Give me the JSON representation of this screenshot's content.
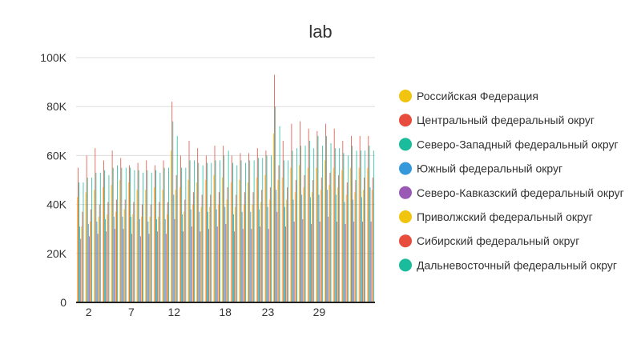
{
  "chart_data": {
    "type": "bar",
    "title": "lab",
    "xlabel": "",
    "ylabel": "",
    "ylim": [
      0,
      100000
    ],
    "y_ticks": [
      "0",
      "20K",
      "40K",
      "60K",
      "80K",
      "100K"
    ],
    "y_tick_values": [
      0,
      20000,
      40000,
      60000,
      80000,
      100000
    ],
    "categories": [
      1,
      2,
      3,
      4,
      5,
      6,
      7,
      8,
      9,
      10,
      11,
      12,
      13,
      14,
      15,
      16,
      17,
      18,
      19,
      20,
      21,
      22,
      23,
      24,
      25,
      26,
      27,
      28,
      29,
      30,
      31,
      32,
      33,
      34,
      35
    ],
    "x_tick_labels": [
      {
        "category": 2,
        "label": "2"
      },
      {
        "category": 7,
        "label": "7"
      },
      {
        "category": 12,
        "label": "12"
      },
      {
        "category": 18,
        "label": "18"
      },
      {
        "category": 23,
        "label": "23"
      },
      {
        "category": 29,
        "label": "29"
      }
    ],
    "grid": true,
    "legend_position": "right",
    "series": [
      {
        "name": "Российская Федерация",
        "color": "#f1c40f",
        "values": [
          43000,
          45000,
          46000,
          47000,
          48000,
          50000,
          49000,
          46000,
          46000,
          47000,
          46000,
          62000,
          47000,
          50000,
          49000,
          50000,
          52000,
          51000,
          49000,
          50000,
          49000,
          51000,
          52000,
          69000,
          51000,
          55000,
          56000,
          55000,
          55000,
          58000,
          55000,
          54000,
          55000,
          55000,
          55000
        ]
      },
      {
        "name": "Центральный федеральный округ",
        "color": "#e74c3c",
        "values": [
          55000,
          60000,
          63000,
          58000,
          62000,
          59000,
          56000,
          57000,
          58000,
          56000,
          58000,
          82000,
          60000,
          66000,
          63000,
          60000,
          64000,
          64000,
          60000,
          61000,
          61000,
          63000,
          62000,
          93000,
          66000,
          73000,
          74000,
          71000,
          70000,
          73000,
          71000,
          66000,
          68000,
          68000,
          68000
        ]
      },
      {
        "name": "Северо-Западный федеральный округ",
        "color": "#1abc9c",
        "values": [
          49000,
          51000,
          53000,
          54000,
          55000,
          55000,
          55000,
          54000,
          54000,
          54000,
          55000,
          74000,
          55000,
          58000,
          57000,
          57000,
          58000,
          60000,
          57000,
          58000,
          58000,
          59000,
          60000,
          80000,
          58000,
          62000,
          64000,
          66000,
          68000,
          68000,
          63000,
          61000,
          64000,
          62000,
          64000
        ]
      },
      {
        "name": "Южный федеральный округ",
        "color": "#3498db",
        "values": [
          31000,
          32000,
          33000,
          34000,
          35000,
          35000,
          35000,
          34000,
          33000,
          34000,
          34000,
          44000,
          36000,
          38000,
          37000,
          37000,
          38000,
          39000,
          36000,
          37000,
          37000,
          38000,
          39000,
          46000,
          39000,
          42000,
          44000,
          43000,
          44000,
          46000,
          44000,
          41000,
          42000,
          43000,
          47000
        ]
      },
      {
        "name": "Северо-Кавказский федеральный округ",
        "color": "#9b59b6",
        "values": [
          26000,
          27000,
          28000,
          29000,
          30000,
          30000,
          28000,
          27000,
          28000,
          29000,
          28000,
          34000,
          29000,
          31000,
          29000,
          30000,
          31000,
          32000,
          29000,
          30000,
          30000,
          31000,
          30000,
          37000,
          31000,
          33000,
          34000,
          32000,
          33000,
          35000,
          33000,
          32000,
          33000,
          33000,
          33000
        ]
      },
      {
        "name": "Приволжский федеральный округ",
        "color": "#f1c40f",
        "values": [
          31000,
          33000,
          35000,
          36000,
          37000,
          38000,
          36000,
          35000,
          35000,
          35000,
          36000,
          46000,
          37000,
          40000,
          39000,
          39000,
          40000,
          42000,
          39000,
          40000,
          40000,
          41000,
          42000,
          50000,
          42000,
          45000,
          47000,
          45000,
          46000,
          48000,
          47000,
          44000,
          45000,
          46000,
          46000
        ]
      },
      {
        "name": "Сибирский федеральный округ",
        "color": "#e74c3c",
        "values": [
          37000,
          38000,
          40000,
          41000,
          42000,
          42000,
          41000,
          40000,
          40000,
          41000,
          41000,
          52000,
          42000,
          45000,
          44000,
          44000,
          45000,
          47000,
          44000,
          45000,
          45000,
          46000,
          47000,
          56000,
          47000,
          50000,
          52000,
          50000,
          51000,
          53000,
          52000,
          49000,
          50000,
          51000,
          51000
        ]
      },
      {
        "name": "Дальневосточный федеральный округ",
        "color": "#1abc9c",
        "values": [
          49000,
          51000,
          53000,
          52000,
          56000,
          55000,
          54000,
          53000,
          53000,
          53000,
          55000,
          68000,
          55000,
          58000,
          56000,
          57000,
          58000,
          62000,
          56000,
          57000,
          58000,
          59000,
          60000,
          72000,
          58000,
          63000,
          64000,
          63000,
          64000,
          65000,
          63000,
          60000,
          62000,
          62000,
          62000
        ]
      }
    ]
  }
}
